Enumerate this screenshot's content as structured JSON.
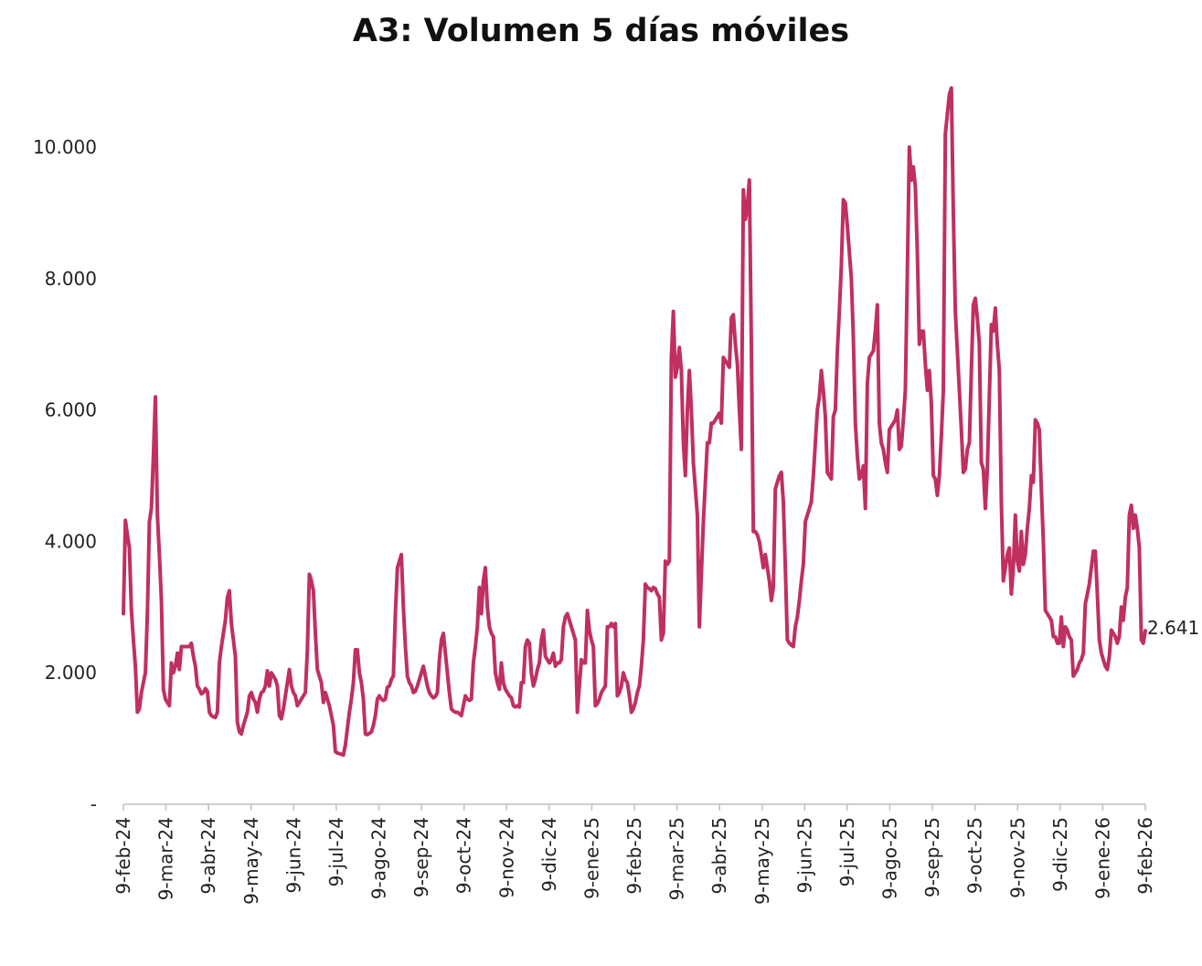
{
  "chart_data": {
    "type": "line",
    "title": "A3: Volumen 5 días móviles",
    "xlabel": "",
    "ylabel": "",
    "ylim": [
      0,
      11000
    ],
    "y_ticks": [
      {
        "value": 0,
        "label": "-"
      },
      {
        "value": 2000,
        "label": "2.000"
      },
      {
        "value": 4000,
        "label": "4.000"
      },
      {
        "value": 6000,
        "label": "6.000"
      },
      {
        "value": 8000,
        "label": "8.000"
      },
      {
        "value": 10000,
        "label": "10.000"
      }
    ],
    "x_ticks": [
      "9-feb-24",
      "9-mar-24",
      "9-abr-24",
      "9-may-24",
      "9-jun-24",
      "9-jul-24",
      "9-ago-24",
      "9-sep-24",
      "9-oct-24",
      "9-nov-24",
      "9-dic-24",
      "9-ene-25",
      "9-feb-25",
      "9-mar-25",
      "9-abr-25",
      "9-may-25",
      "9-jun-25",
      "9-jul-25",
      "9-ago-25",
      "9-sep-25",
      "9-oct-25",
      "9-nov-25",
      "9-dic-25",
      "9-ene-26",
      "9-feb-26"
    ],
    "grid": false,
    "legend": "none",
    "end_label": "2.641",
    "series": [
      {
        "color": "#c0305e",
        "values": [
          2900,
          4320,
          4100,
          3900,
          2950,
          2500,
          2100,
          1400,
          1450,
          1700,
          1850,
          2000,
          2900,
          4300,
          4500,
          5300,
          6200,
          4400,
          3800,
          3100,
          1750,
          1600,
          1550,
          1500,
          2150,
          2000,
          2100,
          2300,
          2050,
          2400,
          2400,
          2400,
          2400,
          2400,
          2450,
          2250,
          2100,
          1800,
          1750,
          1680,
          1700,
          1760,
          1720,
          1400,
          1350,
          1330,
          1320,
          1400,
          2150,
          2400,
          2600,
          2800,
          3150,
          3250,
          2750,
          2500,
          2250,
          1250,
          1100,
          1070,
          1200,
          1300,
          1400,
          1650,
          1700,
          1600,
          1550,
          1400,
          1600,
          1700,
          1720,
          1800,
          2030,
          1800,
          2000,
          1950,
          1900,
          1800,
          1350,
          1300,
          1450,
          1650,
          1850,
          2050,
          1800,
          1700,
          1650,
          1500,
          1550,
          1600,
          1650,
          1700,
          2350,
          3500,
          3400,
          3250,
          2600,
          2050,
          1950,
          1850,
          1550,
          1700,
          1600,
          1500,
          1350,
          1200,
          800,
          780,
          770,
          760,
          750,
          900,
          1150,
          1400,
          1600,
          1850,
          2350,
          2350,
          2000,
          1850,
          1600,
          1070,
          1060,
          1080,
          1100,
          1200,
          1350,
          1600,
          1650,
          1600,
          1580,
          1600,
          1780,
          1800,
          1900,
          1950,
          2900,
          3600,
          3700,
          3800,
          3000,
          2400,
          1950,
          1850,
          1800,
          1700,
          1720,
          1800,
          1900,
          2000,
          2100,
          1950,
          1800,
          1700,
          1650,
          1620,
          1640,
          1700,
          2200,
          2500,
          2600,
          2300,
          2000,
          1700,
          1450,
          1420,
          1400,
          1400,
          1380,
          1350,
          1500,
          1650,
          1600,
          1580,
          1600,
          2150,
          2400,
          2700,
          3300,
          2900,
          3400,
          3600,
          3000,
          2700,
          2600,
          2550,
          2000,
          1850,
          1750,
          2150,
          1850,
          1750,
          1700,
          1650,
          1620,
          1500,
          1480,
          1500,
          1480,
          1850,
          1850,
          2400,
          2500,
          2450,
          2000,
          1800,
          1900,
          2050,
          2150,
          2500,
          2650,
          2250,
          2200,
          2150,
          2200,
          2300,
          2100,
          2150,
          2150,
          2200,
          2700,
          2850,
          2900,
          2800,
          2700,
          2600,
          2500,
          1400,
          1800,
          2200,
          2150,
          2150,
          2950,
          2650,
          2500,
          2400,
          1500,
          1530,
          1600,
          1700,
          1750,
          1800,
          2700,
          2700,
          2750,
          2700,
          2750,
          1650,
          1700,
          1800,
          2000,
          1900,
          1850,
          1650,
          1400,
          1450,
          1550,
          1700,
          1800,
          2100,
          2500,
          3350,
          3300,
          3280,
          3250,
          3300,
          3280,
          3200,
          3150,
          2500,
          2600,
          3700,
          3650,
          3700,
          6800,
          7500,
          6500,
          6650,
          6950,
          6600,
          5500,
          5000,
          6000,
          6600,
          6000,
          5200,
          4800,
          4400,
          2700,
          3500,
          4300,
          4900,
          5500,
          5500,
          5800,
          5800,
          5850,
          5900,
          5950,
          5800,
          6800,
          6750,
          6700,
          6650,
          7400,
          7450,
          7000,
          6700,
          6000,
          5400,
          9350,
          8900,
          9100,
          9500,
          7000,
          4150,
          4150,
          4100,
          4000,
          3800,
          3600,
          3800,
          3600,
          3400,
          3100,
          3300,
          4800,
          4900,
          5000,
          5050,
          4600,
          3600,
          2500,
          2450,
          2420,
          2400,
          2700,
          2850,
          3100,
          3400,
          3650,
          4300,
          4400,
          4500,
          4600,
          5000,
          5500,
          6000,
          6200,
          6600,
          6300,
          5900,
          5050,
          5000,
          4950,
          5900,
          6000,
          6900,
          7500,
          8200,
          9200,
          9150,
          8800,
          8400,
          8000,
          7100,
          5800,
          5300,
          4950,
          5000,
          5150,
          4500,
          6400,
          6800,
          6850,
          6900,
          7200,
          7600,
          5800,
          5500,
          5400,
          5200,
          5050,
          5700,
          5750,
          5800,
          5850,
          6000,
          5400,
          5450,
          5850,
          6300,
          8100,
          10000,
          9500,
          9700,
          9400,
          8400,
          7000,
          7200,
          7200,
          6700,
          6300,
          6600,
          6100,
          5000,
          4950,
          4700,
          5000,
          5600,
          6300,
          10200,
          10500,
          10800,
          10900,
          9000,
          7500,
          6900,
          6300,
          5700,
          5050,
          5100,
          5400,
          5500,
          6600,
          7600,
          7700,
          7400,
          7000,
          5200,
          5100,
          4500,
          5100,
          6200,
          7300,
          7200,
          7550,
          7000,
          6600,
          4600,
          3400,
          3600,
          3800,
          3900,
          3200,
          3600,
          4400,
          3700,
          3550,
          4150,
          3650,
          3800,
          4200,
          4500,
          5000,
          4900,
          5850,
          5800,
          5700,
          4800,
          4000,
          2950,
          2900,
          2850,
          2800,
          2550,
          2550,
          2450,
          2450,
          2850,
          2400,
          2700,
          2650,
          2550,
          2500,
          1950,
          2000,
          2050,
          2150,
          2200,
          2300,
          3050,
          3200,
          3350,
          3600,
          3850,
          3850,
          3200,
          2500,
          2300,
          2200,
          2100,
          2050,
          2250,
          2650,
          2600,
          2550,
          2450,
          2550,
          3000,
          2800,
          3150,
          3300,
          4400,
          4550,
          4200,
          4400,
          4200,
          3900,
          2500,
          2450,
          2641
        ]
      }
    ]
  }
}
